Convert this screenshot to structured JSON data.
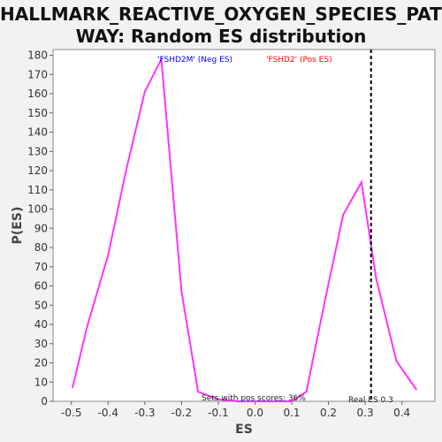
{
  "title_line1": "HALLMARK_REACTIVE_OXYGEN_SPECIES_PATH",
  "title_line2": "WAY: Random ES distribution",
  "chart_data": {
    "type": "line",
    "xlabel": "ES",
    "ylabel": "P(ES)",
    "xlim": [
      -0.55,
      0.49
    ],
    "ylim": [
      0,
      183
    ],
    "x_ticks": [
      "-0.5",
      "-0.4",
      "-0.3",
      "-0.2",
      "-0.1",
      "0.0",
      "0.1",
      "0.2",
      "0.3",
      "0.4"
    ],
    "x_tick_values": [
      -0.5,
      -0.4,
      -0.3,
      -0.2,
      -0.1,
      0.0,
      0.1,
      0.2,
      0.3,
      0.4
    ],
    "y_ticks": [
      "0",
      "10",
      "20",
      "30",
      "40",
      "50",
      "60",
      "70",
      "80",
      "90",
      "100",
      "110",
      "120",
      "130",
      "140",
      "150",
      "160",
      "170",
      "180"
    ],
    "y_tick_values": [
      0,
      10,
      20,
      30,
      40,
      50,
      60,
      70,
      80,
      90,
      100,
      110,
      120,
      130,
      140,
      150,
      160,
      170,
      180
    ],
    "series": [
      {
        "color": "#ff33ff",
        "x": [
          -0.497,
          -0.457,
          -0.4,
          -0.35,
          -0.3,
          -0.255,
          -0.2,
          -0.155,
          -0.1,
          -0.05,
          0.0,
          0.05,
          0.1,
          0.14,
          0.19,
          0.24,
          0.29,
          0.33,
          0.385,
          0.44
        ],
        "y": [
          7,
          39,
          76,
          121,
          161,
          178,
          57,
          5,
          1,
          0,
          0,
          0,
          0,
          5,
          52,
          97,
          114,
          64,
          21,
          6
        ]
      }
    ],
    "real_es": 0.316,
    "real_es_label": "Real ES 0.3",
    "neg_label": "'FSHD2M' (Neg ES)",
    "pos_label": "'FSHD2' (Pos ES)",
    "pos_scores_label": "Sets with pos scores: 36%",
    "colors": {
      "neg": "#0000ff",
      "pos": "#ff0000",
      "line": "#ff33ff",
      "plot_bg": "#ffffff",
      "page_bg": "#f2f2f2"
    }
  }
}
